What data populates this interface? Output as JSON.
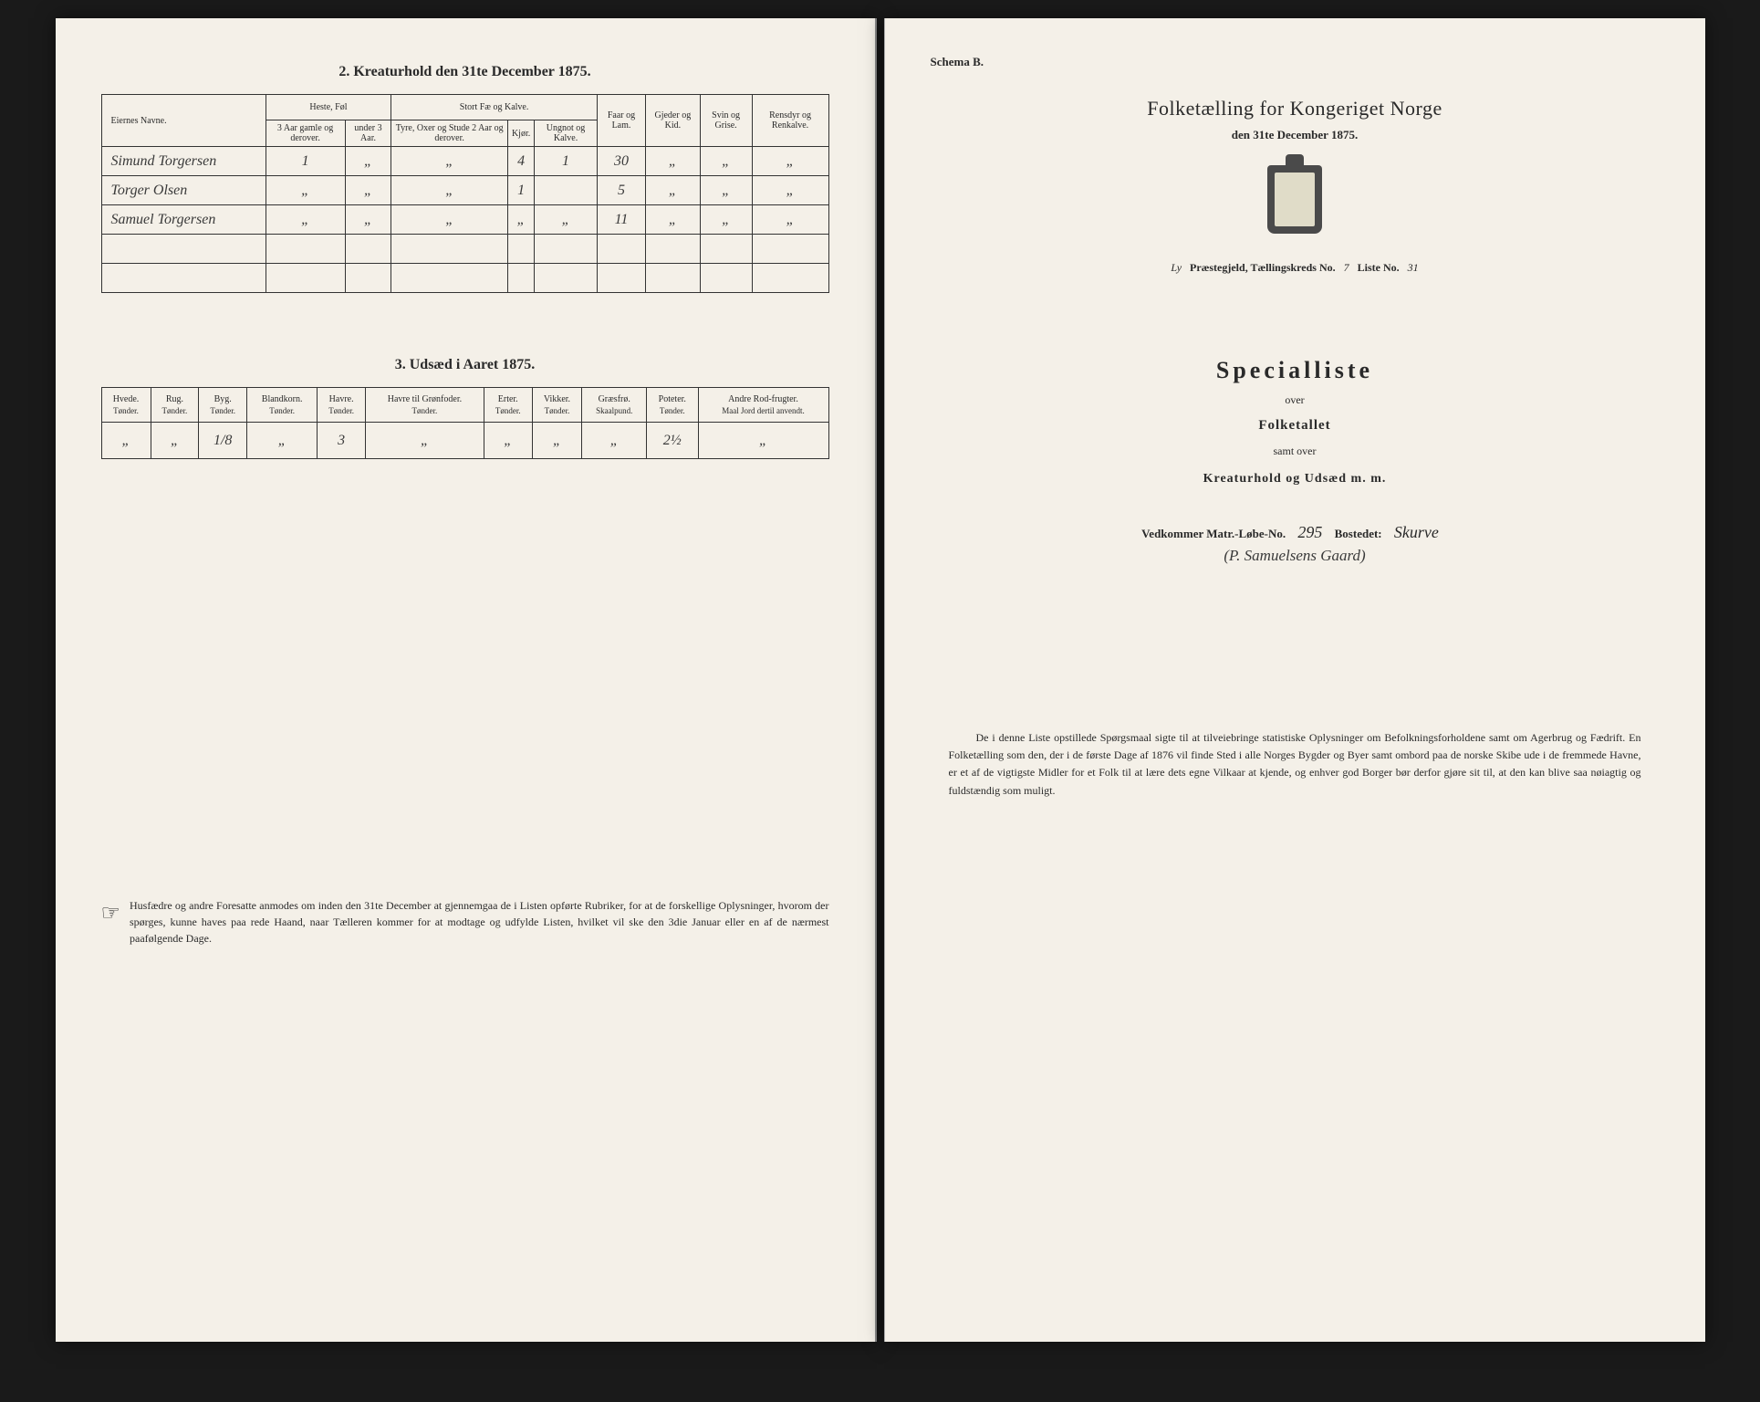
{
  "left": {
    "section2_title": "2. Kreaturhold den 31te December 1875.",
    "livestock": {
      "header_groups": [
        "Eiernes Navne.",
        "Heste, Føl",
        "Stort Fæ og Kalve.",
        "Faar og Lam.",
        "Gjeder og Kid.",
        "Svin og Grise.",
        "Rensdyr og Renkalve."
      ],
      "sub_headers": [
        "3 Aar gamle og derover.",
        "under 3 Aar.",
        "Tyre, Oxer og Stude 2 Aar og derover.",
        "Kjør.",
        "Ungnot og Kalve."
      ],
      "rows": [
        {
          "name": "Simund Torgersen",
          "h1": "1",
          "h2": "„",
          "c1": "„",
          "c2": "4",
          "c3": "1",
          "sheep": "30",
          "goat": "„",
          "pig": "„",
          "rein": "„"
        },
        {
          "name": "Torger Olsen",
          "h1": "„",
          "h2": "„",
          "c1": "„",
          "c2": "1",
          "c3": "",
          "sheep": "5",
          "goat": "„",
          "pig": "„",
          "rein": "„"
        },
        {
          "name": "Samuel Torgersen",
          "h1": "„",
          "h2": "„",
          "c1": "„",
          "c2": "„",
          "c3": "„",
          "sheep": "11",
          "goat": "„",
          "pig": "„",
          "rein": "„"
        },
        {
          "name": "",
          "h1": "",
          "h2": "",
          "c1": "",
          "c2": "",
          "c3": "",
          "sheep": "",
          "goat": "",
          "pig": "",
          "rein": ""
        },
        {
          "name": "",
          "h1": "",
          "h2": "",
          "c1": "",
          "c2": "",
          "c3": "",
          "sheep": "",
          "goat": "",
          "pig": "",
          "rein": ""
        }
      ]
    },
    "section3_title": "3. Udsæd i Aaret 1875.",
    "seed": {
      "headers": [
        "Hvede.",
        "Rug.",
        "Byg.",
        "Blandkorn.",
        "Havre.",
        "Havre til Grønfoder.",
        "Erter.",
        "Vikker.",
        "Græsfrø.",
        "Poteter.",
        "Andre Rod-frugter."
      ],
      "sub": [
        "Tønder.",
        "Tønder.",
        "Tønder.",
        "Tønder.",
        "Tønder.",
        "Tønder.",
        "Tønder.",
        "Tønder.",
        "Skaalpund.",
        "Tønder.",
        "Maal Jord dertil anvendt."
      ],
      "row": [
        "„",
        "„",
        "1/8",
        "„",
        "3",
        "„",
        "„",
        "„",
        "„",
        "2½",
        "„"
      ]
    },
    "footnote": "Husfædre og andre Foresatte anmodes om inden den 31te December at gjennemgaa de i Listen opførte Rubriker, for at de forskellige Oplysninger, hvorom der spørges, kunne haves paa rede Haand, naar Tælleren kommer for at modtage og udfylde Listen, hvilket vil ske den 3die Januar eller en af de nærmest paafølgende Dage."
  },
  "right": {
    "schema": "Schema B.",
    "main_title": "Folketælling for Kongeriget Norge",
    "date": "den 31te December 1875.",
    "parish_prefix": "Ly",
    "parish_label1": " Præstegjeld,  Tællingskreds No. ",
    "kreds_no": "7",
    "liste_label": "     Liste No. ",
    "liste_no": "31",
    "spec_title": "Specialliste",
    "spec_over": "over",
    "spec_folk": "Folketallet",
    "spec_samt": "samt over",
    "spec_kreatur": "Kreaturhold og Udsæd m. m.",
    "matr_label": "Vedkommer Matr.-Løbe-No. ",
    "matr_no": "295",
    "bosted_label": "     Bostedet:  ",
    "bosted_val": "Skurve",
    "bosted_sub": "(P. Samuelsens Gaard)",
    "footnote": "De i denne Liste opstillede Spørgsmaal sigte til at tilveiebringe statistiske Oplysninger om Befolkningsforholdene samt om Agerbrug og Fædrift. En Folketælling som den, der i de første Dage af 1876 vil finde Sted i alle Norges Bygder og Byer samt ombord paa de norske Skibe ude i de fremmede Havne, er et af de vigtigste Midler for et Folk til at lære dets egne Vilkaar at kjende, og enhver god Borger bør derfor gjøre sit til, at den kan blive saa nøiagtig og fuldstændig som muligt."
  }
}
